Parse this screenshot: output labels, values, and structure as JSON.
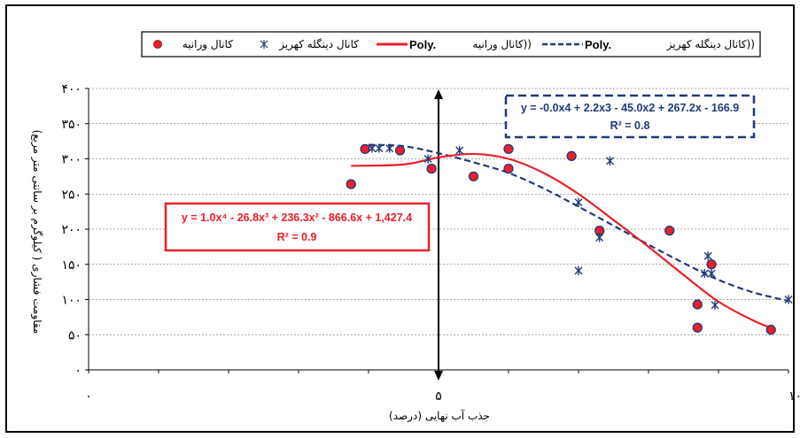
{
  "chart_data": {
    "type": "scatter",
    "xlabel": "جذب آب نهایی (درصد)",
    "ylabel": "مقاومت فشاری ( کیلوگرم بر سانتی متر مربع)",
    "xlim": [
      0,
      10
    ],
    "ylim": [
      0,
      400
    ],
    "x_ticks": [
      {
        "v": 0,
        "label": "۰"
      },
      {
        "v": 5,
        "label": "۵"
      },
      {
        "v": 10,
        "label": "۱۰"
      }
    ],
    "y_ticks": [
      {
        "v": 0,
        "label": "۰"
      },
      {
        "v": 50,
        "label": "۵۰"
      },
      {
        "v": 100,
        "label": "۱۰۰"
      },
      {
        "v": 150,
        "label": "۱۵۰"
      },
      {
        "v": 200,
        "label": "۲۰۰"
      },
      {
        "v": 250,
        "label": "۲۵۰"
      },
      {
        "v": 300,
        "label": "۳۰۰"
      },
      {
        "v": 350,
        "label": "۳۵۰"
      },
      {
        "v": 400,
        "label": "۴۰۰"
      }
    ],
    "grid": "horizontal",
    "legend_position": "top",
    "colors": {
      "varineh": "#e8202a",
      "dinegaleh": "#1f3a7a",
      "frame": "#000000"
    },
    "series": [
      {
        "name": "کانال ورانیه",
        "marker": "circle",
        "points": [
          [
            3.75,
            264
          ],
          [
            3.95,
            314
          ],
          [
            4.45,
            312
          ],
          [
            4.9,
            286
          ],
          [
            5.5,
            275
          ],
          [
            6.0,
            286
          ],
          [
            6.0,
            314
          ],
          [
            6.9,
            304
          ],
          [
            7.3,
            198
          ],
          [
            8.3,
            198
          ],
          [
            8.7,
            93
          ],
          [
            8.7,
            60
          ],
          [
            8.9,
            150
          ],
          [
            9.75,
            57
          ]
        ]
      },
      {
        "name": "کانال دینگله کهریز",
        "marker": "asterisk",
        "points": [
          [
            4.05,
            315
          ],
          [
            4.15,
            315
          ],
          [
            4.3,
            315
          ],
          [
            4.85,
            300
          ],
          [
            5.3,
            312
          ],
          [
            7.0,
            238
          ],
          [
            7.0,
            141
          ],
          [
            7.3,
            188
          ],
          [
            7.45,
            297
          ],
          [
            8.8,
            137
          ],
          [
            8.85,
            162
          ],
          [
            8.9,
            137
          ],
          [
            8.95,
            92
          ],
          [
            10.0,
            100
          ]
        ]
      }
    ],
    "trendlines": [
      {
        "name": "Poly. (کانال ورانیه)",
        "style": "solid",
        "curve": [
          [
            3.75,
            290
          ],
          [
            4.5,
            292
          ],
          [
            5.0,
            302
          ],
          [
            5.5,
            307
          ],
          [
            6.0,
            300
          ],
          [
            6.5,
            280
          ],
          [
            7.0,
            250
          ],
          [
            7.5,
            213
          ],
          [
            8.0,
            175
          ],
          [
            8.5,
            135
          ],
          [
            9.0,
            97
          ],
          [
            9.5,
            70
          ],
          [
            9.8,
            58
          ]
        ],
        "equation": "y = 1.0x⁴ - 26.8x³ + 236.3x² - 866.6x + 1,427.4",
        "r2": "R² = 0.9"
      },
      {
        "name": "Poly. (کانال دینگله کهریز)",
        "style": "dashed",
        "curve": [
          [
            4.0,
            320
          ],
          [
            4.5,
            318
          ],
          [
            5.0,
            308
          ],
          [
            5.5,
            295
          ],
          [
            6.0,
            280
          ],
          [
            6.5,
            258
          ],
          [
            7.0,
            232
          ],
          [
            7.5,
            205
          ],
          [
            8.0,
            178
          ],
          [
            8.5,
            152
          ],
          [
            9.0,
            128
          ],
          [
            9.5,
            110
          ],
          [
            10.0,
            98
          ]
        ],
        "equation": "y = -0.0x4 + 2.2x3 - 45.0x2 + 267.2x - 166.9",
        "r2": "R² = 0.8"
      }
    ]
  },
  "legend": [
    {
      "label": "کانال ورانیه"
    },
    {
      "label": "کانال دینگله کهریز"
    },
    {
      "label": "کانال ورانیه))",
      "poly": "Poly."
    },
    {
      "label": "کانال دینگله کهریز))",
      "poly": "Poly."
    }
  ]
}
